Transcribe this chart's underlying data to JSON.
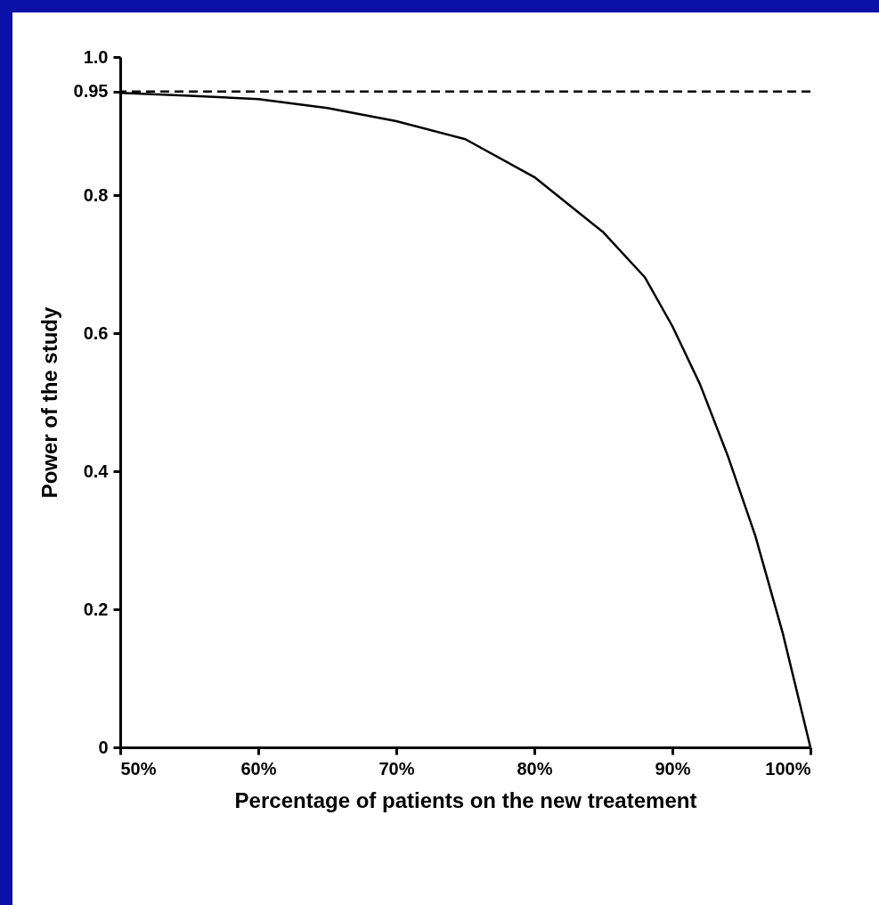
{
  "chart_data": {
    "type": "line",
    "xlabel": "Percentage of patients on the new treatement",
    "ylabel": "Power of the study",
    "x": [
      50,
      55,
      60,
      65,
      70,
      75,
      80,
      85,
      88,
      90,
      92,
      94,
      96,
      98,
      100
    ],
    "series": [
      {
        "color": "#000000",
        "values": [
          0.948,
          0.944,
          0.939,
          0.926,
          0.907,
          0.881,
          0.826,
          0.746,
          0.681,
          0.61,
          0.526,
          0.423,
          0.307,
          0.165,
          0
        ]
      }
    ],
    "xlim": [
      50,
      100
    ],
    "xticks": [
      {
        "value": 50,
        "label": "50%"
      },
      {
        "value": 60,
        "label": "60%"
      },
      {
        "value": 70,
        "label": "70%"
      },
      {
        "value": 80,
        "label": "80%"
      },
      {
        "value": 90,
        "label": "90%"
      },
      {
        "value": 100,
        "label": "100%"
      }
    ],
    "ylim": [
      0,
      1
    ],
    "yticks": [
      0,
      0.2,
      0.4,
      0.6,
      0.8,
      0.95,
      {
        "value": 1,
        "label": "1.0"
      }
    ],
    "ref_lines": [
      {
        "axis": "y",
        "value": 0.95,
        "color": "#000000",
        "line_style": "dashed"
      }
    ],
    "grid": false,
    "marker": "none",
    "line_style": "solid"
  }
}
